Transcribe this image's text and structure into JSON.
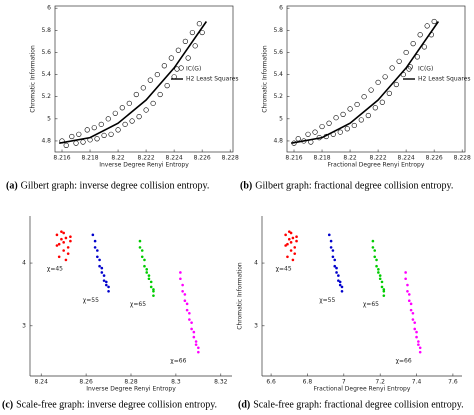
{
  "chart_data": [
    {
      "type": "scatter",
      "label": "(a)",
      "caption": "Gilbert graph: inverse degree collision entropy.",
      "xlabel": "Inverse Degree Renyi Entropy",
      "ylabel": "Chromatic Information",
      "xlim": [
        8.2155,
        8.2282
      ],
      "ylim": [
        4.7,
        6.02
      ],
      "xticks": [
        8.216,
        8.218,
        8.22,
        8.222,
        8.224,
        8.226,
        8.228
      ],
      "yticks": [
        4.8,
        5,
        5.2,
        5.4,
        5.6,
        5.8,
        6
      ],
      "box": true,
      "legend": "right",
      "series": [
        {
          "name": "IC(G)",
          "marker": "circle",
          "color": "#000000",
          "x": [
            8.216,
            8.2163,
            8.2167,
            8.217,
            8.2172,
            8.2175,
            8.2178,
            8.218,
            8.2183,
            8.2185,
            8.2188,
            8.219,
            8.2193,
            8.2195,
            8.2198,
            8.22,
            8.2203,
            8.2205,
            8.2208,
            8.221,
            8.2213,
            8.2215,
            8.2218,
            8.222,
            8.2223,
            8.2225,
            8.2228,
            8.223,
            8.2233,
            8.2235,
            8.2238,
            8.224,
            8.2243,
            8.2245,
            8.2248,
            8.225,
            8.2253,
            8.2255,
            8.2258,
            8.226
          ],
          "values": [
            4.8,
            4.76,
            4.84,
            4.78,
            4.86,
            4.79,
            4.9,
            4.81,
            4.92,
            4.82,
            4.95,
            4.85,
            5.0,
            4.86,
            5.05,
            4.9,
            5.1,
            4.95,
            5.14,
            4.98,
            5.22,
            5.02,
            5.28,
            5.08,
            5.35,
            5.14,
            5.4,
            5.22,
            5.48,
            5.3,
            5.55,
            5.38,
            5.62,
            5.46,
            5.7,
            5.55,
            5.78,
            5.66,
            5.86,
            5.78
          ]
        },
        {
          "name": "H2 Least Squares",
          "marker": "line",
          "color": "#000000",
          "x": [
            8.2158,
            8.218,
            8.22,
            8.222,
            8.224,
            8.2263
          ],
          "values": [
            4.78,
            4.83,
            4.96,
            5.17,
            5.46,
            5.88
          ]
        }
      ]
    },
    {
      "type": "scatter",
      "label": "(b)",
      "caption": "Gilbert graph: fractional degree collision entropy.",
      "xlabel": "Fractional Degree Renyi Entropy",
      "ylabel": "Chromatic Information",
      "xlim": [
        8.2155,
        8.2282
      ],
      "ylim": [
        4.7,
        6.02
      ],
      "xticks": [
        8.216,
        8.218,
        8.22,
        8.222,
        8.224,
        8.226,
        8.228
      ],
      "yticks": [
        4.8,
        5,
        5.2,
        5.4,
        5.6,
        5.8,
        6
      ],
      "box": true,
      "legend": "right",
      "series": [
        {
          "name": "IC(G)",
          "marker": "circle",
          "color": "#000000",
          "x": [
            8.216,
            8.2163,
            8.2167,
            8.217,
            8.2172,
            8.2175,
            8.2178,
            8.218,
            8.2183,
            8.2185,
            8.2188,
            8.219,
            8.2193,
            8.2195,
            8.2198,
            8.22,
            8.2203,
            8.2205,
            8.2208,
            8.221,
            8.2213,
            8.2215,
            8.2218,
            8.222,
            8.2223,
            8.2225,
            8.2228,
            8.223,
            8.2233,
            8.2235,
            8.2238,
            8.224,
            8.2243,
            8.2245,
            8.2248,
            8.225,
            8.2253,
            8.2255,
            8.2258,
            8.226
          ],
          "values": [
            4.78,
            4.82,
            4.8,
            4.86,
            4.79,
            4.88,
            4.83,
            4.93,
            4.84,
            4.96,
            4.86,
            5.01,
            4.88,
            5.04,
            4.91,
            5.09,
            4.94,
            5.13,
            4.99,
            5.2,
            5.03,
            5.26,
            5.1,
            5.33,
            5.15,
            5.38,
            5.23,
            5.46,
            5.31,
            5.52,
            5.4,
            5.6,
            5.47,
            5.68,
            5.56,
            5.76,
            5.65,
            5.84,
            5.76,
            5.88
          ]
        },
        {
          "name": "H2 Least Squares",
          "marker": "line",
          "color": "#000000",
          "x": [
            8.2158,
            8.218,
            8.22,
            8.222,
            8.224,
            8.2263
          ],
          "values": [
            4.78,
            4.83,
            4.96,
            5.17,
            5.46,
            5.88
          ]
        }
      ]
    },
    {
      "type": "scatter",
      "label": "(c)",
      "caption": "Scale-free graph: inverse degree collision entropy.",
      "xlabel": "Inverse Degree Renyi Entropy",
      "xlim": [
        8.235,
        8.325
      ],
      "ylim": [
        2.2,
        4.75
      ],
      "xticks": [
        8.24,
        8.26,
        8.28,
        8.3,
        8.32
      ],
      "yticks": [
        3,
        4
      ],
      "box": false,
      "series": [
        {
          "name": "χ=45",
          "marker": "dot",
          "color": "#ff0000",
          "x": [
            8.247,
            8.248,
            8.249,
            8.25,
            8.251,
            8.252,
            8.253,
            8.248,
            8.25,
            8.252,
            8.249,
            8.251,
            8.247,
            8.253,
            8.25
          ],
          "values": [
            4.45,
            4.3,
            4.5,
            4.2,
            4.4,
            4.15,
            4.35,
            4.1,
            4.48,
            4.25,
            4.38,
            4.05,
            4.28,
            4.42,
            4.33
          ]
        },
        {
          "name": "χ=55",
          "marker": "dot",
          "color": "#0000cc",
          "x": [
            8.263,
            8.264,
            8.264,
            8.265,
            8.265,
            8.266,
            8.266,
            8.267,
            8.267,
            8.268,
            8.268,
            8.269,
            8.269,
            8.27,
            8.27
          ],
          "values": [
            4.45,
            4.35,
            4.25,
            4.2,
            4.1,
            4.05,
            3.95,
            3.92,
            3.85,
            3.8,
            3.72,
            3.7,
            3.65,
            3.62,
            3.55
          ]
        },
        {
          "name": "χ=65",
          "marker": "dot",
          "color": "#00cc00",
          "x": [
            8.284,
            8.284,
            8.285,
            8.285,
            8.286,
            8.286,
            8.287,
            8.287,
            8.288,
            8.288,
            8.289,
            8.289,
            8.29,
            8.29,
            8.29
          ],
          "values": [
            4.35,
            4.25,
            4.2,
            4.1,
            4.05,
            3.95,
            3.9,
            3.85,
            3.8,
            3.75,
            3.7,
            3.62,
            3.58,
            3.55,
            3.48
          ]
        },
        {
          "name": "χ=66",
          "marker": "dot",
          "color": "#ff00ff",
          "x": [
            8.302,
            8.302,
            8.303,
            8.303,
            8.304,
            8.304,
            8.305,
            8.305,
            8.306,
            8.306,
            8.307,
            8.307,
            8.308,
            8.308,
            8.309,
            8.309,
            8.31,
            8.31
          ],
          "values": [
            3.85,
            3.75,
            3.65,
            3.55,
            3.5,
            3.4,
            3.35,
            3.25,
            3.2,
            3.1,
            3.05,
            2.95,
            2.9,
            2.82,
            2.75,
            2.7,
            2.65,
            2.58
          ]
        }
      ]
    },
    {
      "type": "scatter",
      "label": "(d)",
      "caption": "Scale-free graph: fractional degree collision entropy.",
      "xlabel": "Fractional Degree Renyi Entropy",
      "ylabel": "Chromatic Information",
      "xlim": [
        6.55,
        7.65
      ],
      "ylim": [
        2.2,
        4.75
      ],
      "xticks": [
        6.6,
        6.8,
        7,
        7.2,
        7.4,
        7.6
      ],
      "yticks": [
        3,
        4
      ],
      "box": false,
      "series": [
        {
          "name": "χ=45",
          "marker": "dot",
          "color": "#ff0000",
          "x": [
            6.68,
            6.69,
            6.7,
            6.71,
            6.72,
            6.73,
            6.74,
            6.69,
            6.71,
            6.73,
            6.7,
            6.72,
            6.68,
            6.74,
            6.71
          ],
          "values": [
            4.45,
            4.3,
            4.5,
            4.2,
            4.4,
            4.15,
            4.35,
            4.1,
            4.48,
            4.25,
            4.38,
            4.05,
            4.28,
            4.42,
            4.33
          ]
        },
        {
          "name": "χ=55",
          "marker": "dot",
          "color": "#0000cc",
          "x": [
            6.92,
            6.93,
            6.93,
            6.94,
            6.94,
            6.95,
            6.95,
            6.96,
            6.96,
            6.97,
            6.97,
            6.98,
            6.98,
            6.99,
            6.99
          ],
          "values": [
            4.45,
            4.35,
            4.25,
            4.2,
            4.1,
            4.05,
            3.95,
            3.92,
            3.85,
            3.8,
            3.72,
            3.7,
            3.65,
            3.62,
            3.55
          ]
        },
        {
          "name": "χ=65",
          "marker": "dot",
          "color": "#00cc00",
          "x": [
            7.16,
            7.16,
            7.17,
            7.17,
            7.18,
            7.18,
            7.19,
            7.19,
            7.2,
            7.2,
            7.21,
            7.21,
            7.22,
            7.22,
            7.22
          ],
          "values": [
            4.35,
            4.25,
            4.2,
            4.1,
            4.05,
            3.95,
            3.9,
            3.85,
            3.8,
            3.75,
            3.7,
            3.62,
            3.58,
            3.55,
            3.48
          ]
        },
        {
          "name": "χ=66",
          "marker": "dot",
          "color": "#ff00ff",
          "x": [
            7.34,
            7.34,
            7.35,
            7.35,
            7.36,
            7.36,
            7.37,
            7.37,
            7.38,
            7.38,
            7.39,
            7.39,
            7.4,
            7.4,
            7.41,
            7.41,
            7.42,
            7.42
          ],
          "values": [
            3.85,
            3.75,
            3.65,
            3.55,
            3.5,
            3.4,
            3.35,
            3.25,
            3.2,
            3.1,
            3.05,
            2.95,
            2.9,
            2.82,
            2.75,
            2.7,
            2.65,
            2.58
          ]
        }
      ]
    }
  ]
}
